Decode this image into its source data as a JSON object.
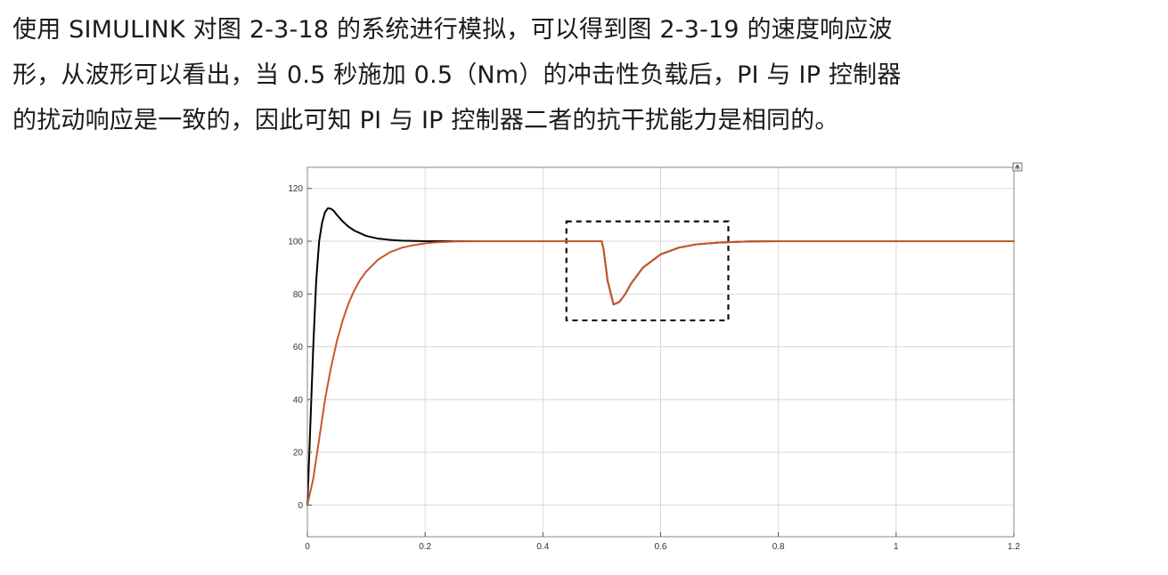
{
  "paragraph": {
    "lines": [
      "使用 SIMULINK 对图 2-3-18 的系统进行模拟，可以得到图 2-3-19 的速度响应波",
      "形，从波形可以看出，当 0.5 秒施加 0.5（Nm）的冲击性负载后，PI 与 IP 控制器",
      "的扰动响应是一致的，因此可知 PI 与 IP 控制器二者的抗干扰能力是相同的。"
    ]
  },
  "chart_data": {
    "type": "line",
    "title": "",
    "xlabel": "",
    "ylabel": "",
    "xlim": [
      0,
      1.2
    ],
    "ylim": [
      -12,
      128
    ],
    "x_ticks": [
      "0",
      "0.2",
      "0.4",
      "0.6",
      "0.8",
      "1",
      "1.2"
    ],
    "y_ticks": [
      "0",
      "20",
      "40",
      "60",
      "80",
      "100",
      "120"
    ],
    "grid": true,
    "legend": "none",
    "corner_icon": "expand-icon",
    "series": [
      {
        "color": "#000000",
        "x": [
          0,
          0.005,
          0.01,
          0.015,
          0.02,
          0.025,
          0.03,
          0.035,
          0.04,
          0.045,
          0.05,
          0.06,
          0.07,
          0.08,
          0.09,
          0.1,
          0.12,
          0.14,
          0.16,
          0.2,
          0.25,
          0.3,
          0.5,
          0.503,
          0.51,
          0.52,
          0.53,
          0.54,
          0.55,
          0.57,
          0.6,
          0.63,
          0.66,
          0.7,
          0.75,
          0.8,
          1.0,
          1.2
        ],
        "y": [
          0,
          30,
          60,
          85,
          100,
          107,
          111,
          112.5,
          112.3,
          111.5,
          110,
          107.5,
          105.5,
          104,
          103,
          102,
          101,
          100.5,
          100.2,
          100,
          100,
          100,
          100,
          97,
          85,
          76,
          77,
          80,
          84,
          90,
          95,
          97.5,
          98.8,
          99.5,
          99.9,
          100,
          100,
          100
        ]
      },
      {
        "color": "#c8572a",
        "x": [
          0,
          0.01,
          0.02,
          0.03,
          0.04,
          0.05,
          0.06,
          0.07,
          0.08,
          0.09,
          0.1,
          0.12,
          0.14,
          0.16,
          0.18,
          0.2,
          0.22,
          0.25,
          0.3,
          0.5,
          0.503,
          0.51,
          0.52,
          0.53,
          0.54,
          0.55,
          0.57,
          0.6,
          0.63,
          0.66,
          0.7,
          0.75,
          0.8,
          1.0,
          1.2
        ],
        "y": [
          0,
          10,
          25,
          40,
          52,
          62,
          70,
          76.5,
          81.5,
          85.5,
          88.5,
          93,
          95.8,
          97.5,
          98.5,
          99.2,
          99.6,
          99.9,
          100,
          100,
          97,
          85,
          76,
          77,
          80,
          84,
          90,
          95,
          97.5,
          98.8,
          99.5,
          99.9,
          100,
          100,
          100
        ]
      }
    ],
    "highlight_box": {
      "x0": 0.44,
      "x1": 0.715,
      "y0": 70,
      "y1": 107.5
    }
  }
}
